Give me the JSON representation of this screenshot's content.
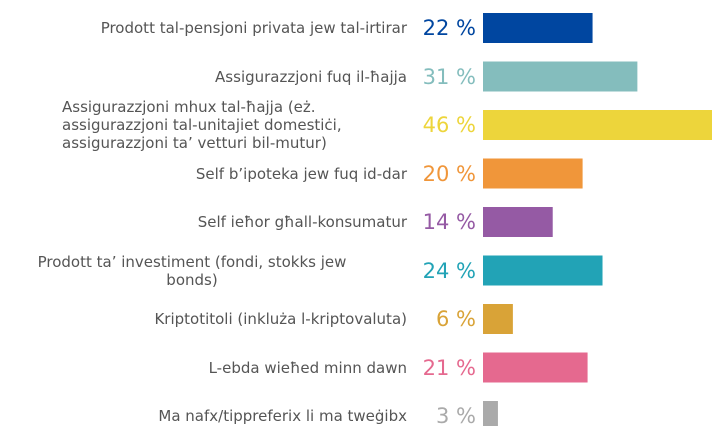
{
  "chart_data": {
    "type": "bar",
    "orientation": "horizontal",
    "categories": [
      "Prodott tal-pensjoni privata jew tal-irtirar",
      "Assigurazzjoni fuq il-ħajja",
      "Assigurazzjoni mhux tal-ħajja (eż. assigurazzjoni tal-unitajiet domestiċi, assigurazzjoni ta’ vetturi bil-mutur)",
      "Self b’ipoteka jew fuq id-dar",
      "Self ieħor għall-konsumatur",
      "Prodott ta’ investiment (fondi, stokks jew bonds)",
      "Kriptotitoli (inkluża l-kriptovaluta)",
      "L-ebda wieħed minn dawn",
      "Ma nafx/tippreferix li ma tweġibx"
    ],
    "values": [
      22,
      31,
      46,
      20,
      14,
      24,
      6,
      21,
      3
    ],
    "value_labels": [
      "22 %",
      "31 %",
      "46 %",
      "20 %",
      "14 %",
      "24 %",
      "6 %",
      "21 %",
      "3 %"
    ],
    "colors": [
      "#0046a0",
      "#84bdbd",
      "#edd53b",
      "#f0963a",
      "#955aa4",
      "#22a3b6",
      "#d9a337",
      "#e5698f",
      "#aaaaaa"
    ]
  }
}
